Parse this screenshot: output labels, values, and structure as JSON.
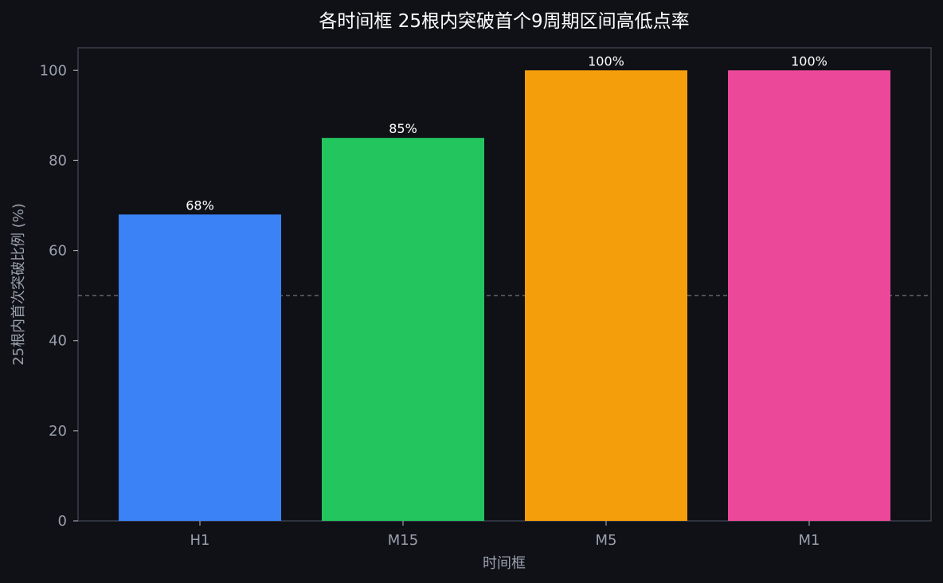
{
  "chart_data": {
    "type": "bar",
    "title": "各时间框 25根内突破首个9周期区间高低点率",
    "xlabel": "时间框",
    "ylabel": "25根内首次突破比例 (%)",
    "categories": [
      "H1",
      "M15",
      "M5",
      "M1"
    ],
    "values": [
      68,
      85,
      100,
      100
    ],
    "value_labels": [
      "68%",
      "85%",
      "100%",
      "100%"
    ],
    "colors": [
      "#3b82f6",
      "#22c55e",
      "#f59e0b",
      "#ec4899"
    ],
    "ylim": [
      0,
      105
    ],
    "yticks": [
      0,
      20,
      40,
      60,
      80,
      100
    ],
    "reference_line": {
      "y": 50,
      "style": "dashed"
    },
    "grid": false,
    "legend": "none",
    "background": "#0f1116",
    "frame_color": "#3a3f4b"
  }
}
